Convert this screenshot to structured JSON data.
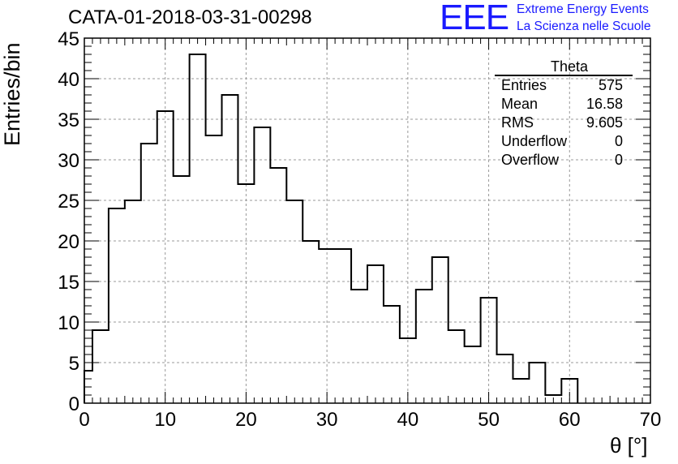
{
  "title": "CATA-01-2018-03-31-00298",
  "logo": {
    "mark": "EEE",
    "line1": "Extreme Energy Events",
    "line2": "La Scienza nelle Scuole",
    "color": "#1a1aff"
  },
  "stats": {
    "title": "Theta",
    "rows": [
      {
        "label": "Entries",
        "value": "575"
      },
      {
        "label": "Mean",
        "value": "16.58"
      },
      {
        "label": "RMS",
        "value": "9.605"
      },
      {
        "label": "Underflow",
        "value": "0"
      },
      {
        "label": "Overflow",
        "value": "0"
      }
    ]
  },
  "chart_data": {
    "type": "bar",
    "histogram": true,
    "title": "CATA-01-2018-03-31-00298",
    "xlabel": "θ [°]",
    "ylabel": "Entries/bin",
    "xlim": [
      0,
      70
    ],
    "ylim": [
      0,
      45
    ],
    "bin_width": 2,
    "x_ticks": [
      0,
      10,
      20,
      30,
      40,
      50,
      60,
      70
    ],
    "y_ticks": [
      0,
      5,
      10,
      15,
      20,
      25,
      30,
      35,
      40,
      45
    ],
    "grid": true,
    "bin_low_edges": [
      1,
      3,
      5,
      7,
      9,
      11,
      13,
      15,
      17,
      19,
      21,
      23,
      25,
      27,
      29,
      31,
      33,
      35,
      37,
      39,
      41,
      43,
      45,
      47,
      49,
      51,
      53,
      55,
      57,
      59,
      61,
      63,
      65,
      67,
      69
    ],
    "first_bin": {
      "low": 0,
      "high": 1,
      "value": 4
    },
    "values": [
      9,
      24,
      25,
      32,
      36,
      28,
      43,
      33,
      38,
      27,
      34,
      29,
      25,
      20,
      19,
      19,
      14,
      17,
      12,
      8,
      14,
      18,
      9,
      7,
      13,
      6,
      3,
      5,
      1,
      3,
      0,
      0,
      0,
      0,
      0
    ]
  }
}
